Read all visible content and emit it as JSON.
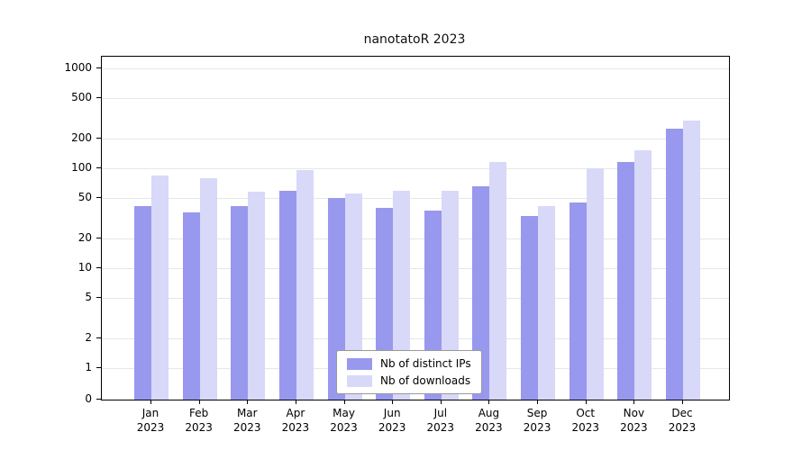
{
  "title": "nanotatoR 2023",
  "chart_data": {
    "type": "bar",
    "title": "nanotatoR 2023",
    "categories": [
      "Jan",
      "Feb",
      "Mar",
      "Apr",
      "May",
      "Jun",
      "Jul",
      "Aug",
      "Sep",
      "Oct",
      "Nov",
      "Dec"
    ],
    "year": "2023",
    "series": [
      {
        "name": "Nb of distinct IPs",
        "color": "#9898ee",
        "values": [
          42,
          36,
          42,
          60,
          50,
          40,
          38,
          66,
          33,
          45,
          115,
          250
        ]
      },
      {
        "name": "Nb of downloads",
        "color": "#d8d8f8",
        "values": [
          85,
          80,
          58,
          96,
          56,
          60,
          60,
          115,
          42,
          100,
          150,
          300
        ]
      }
    ],
    "yscale": "log",
    "yticks": [
      0,
      1,
      2,
      5,
      10,
      20,
      50,
      100,
      200,
      500,
      1000
    ],
    "ylim": [
      0,
      1000
    ],
    "xlabel": "",
    "ylabel": "",
    "grid": true,
    "legend_position": "bottom-center"
  }
}
